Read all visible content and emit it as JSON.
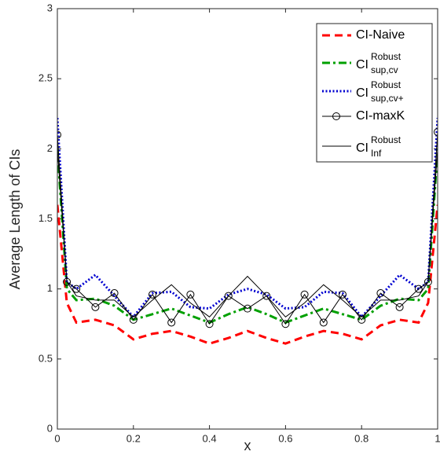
{
  "chart_data": {
    "type": "line",
    "xlabel": "x",
    "ylabel": "Average Length of CIs",
    "x": [
      0,
      0.025,
      0.05,
      0.1,
      0.15,
      0.2,
      0.25,
      0.3,
      0.35,
      0.4,
      0.45,
      0.5,
      0.55,
      0.6,
      0.65,
      0.7,
      0.75,
      0.8,
      0.85,
      0.9,
      0.95,
      0.975,
      1
    ],
    "xlim": [
      0,
      1
    ],
    "xticks": [
      0,
      0.2,
      0.4,
      0.6,
      0.8,
      1
    ],
    "ylim": [
      0,
      3
    ],
    "yticks": [
      0,
      0.5,
      1,
      1.5,
      2,
      2.5,
      3
    ],
    "legend": "upper right",
    "series": [
      {
        "name": "CI-Naive",
        "color": "#ff0000",
        "dash": "10,6",
        "width": 3,
        "values": [
          1.6,
          0.9,
          0.76,
          0.78,
          0.74,
          0.64,
          0.68,
          0.7,
          0.66,
          0.61,
          0.65,
          0.7,
          0.65,
          0.61,
          0.66,
          0.7,
          0.68,
          0.64,
          0.74,
          0.78,
          0.76,
          0.9,
          1.6
        ]
      },
      {
        "name": "CI",
        "name_superscript": "Robust",
        "name_subscript": "sup,cv",
        "color": "#00a000",
        "dash": "10,4,3,4",
        "width": 3,
        "values": [
          2.0,
          1.0,
          0.92,
          0.93,
          0.88,
          0.78,
          0.82,
          0.86,
          0.81,
          0.76,
          0.82,
          0.87,
          0.82,
          0.76,
          0.81,
          0.86,
          0.82,
          0.78,
          0.88,
          0.93,
          0.92,
          1.0,
          2.0
        ]
      },
      {
        "name": "CI",
        "name_superscript": "Robust",
        "name_subscript": "sup,cv+",
        "color": "#0000d0",
        "dash": "2,2.5",
        "width": 3,
        "values": [
          2.22,
          1.05,
          1.0,
          1.1,
          0.95,
          0.8,
          0.97,
          0.98,
          0.87,
          0.86,
          0.96,
          1.0,
          0.96,
          0.86,
          0.87,
          0.98,
          0.97,
          0.8,
          0.95,
          1.1,
          1.0,
          1.05,
          2.22
        ]
      },
      {
        "name": "CI-maxK",
        "color": "#000000",
        "dash": "none",
        "width": 1,
        "marker": "circle",
        "values": [
          2.1,
          1.05,
          1.0,
          0.87,
          0.97,
          0.78,
          0.96,
          0.76,
          0.96,
          0.75,
          0.95,
          0.86,
          0.95,
          0.75,
          0.96,
          0.76,
          0.96,
          0.78,
          0.97,
          0.87,
          1.0,
          1.05,
          2.12
        ]
      },
      {
        "name": "CI",
        "name_superscript": "Robust",
        "name_subscript": "Inf",
        "color": "#000000",
        "dash": "none",
        "width": 1,
        "values": [
          2.0,
          1.05,
          0.95,
          0.92,
          0.92,
          0.8,
          0.92,
          1.03,
          0.9,
          0.8,
          0.95,
          1.09,
          0.95,
          0.8,
          0.9,
          1.03,
          0.92,
          0.8,
          0.92,
          0.92,
          0.95,
          1.05,
          2.0
        ]
      }
    ]
  }
}
